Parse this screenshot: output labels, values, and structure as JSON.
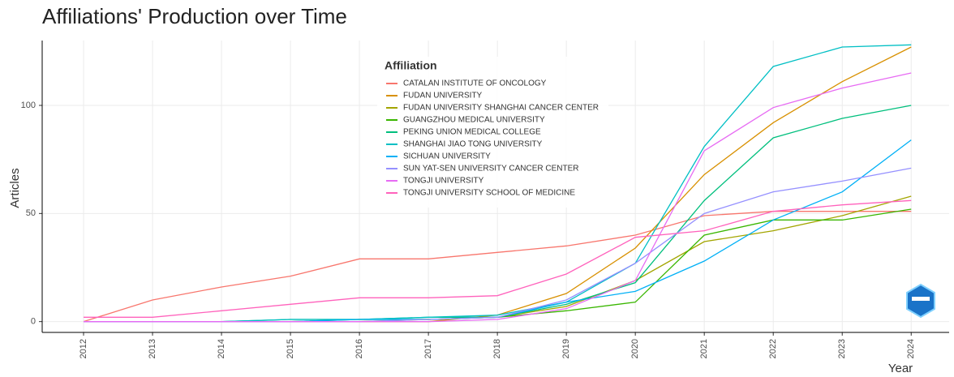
{
  "chart_data": {
    "type": "line",
    "title": "Affiliations' Production over Time",
    "x_label": "Year",
    "y_label": "Articles",
    "legend_title": "Affiliation",
    "x": [
      2012,
      2013,
      2014,
      2015,
      2016,
      2017,
      2018,
      2019,
      2020,
      2021,
      2022,
      2023,
      2024
    ],
    "xlim": [
      2011.4,
      2024.55
    ],
    "xticks": [
      2012,
      2013,
      2014,
      2015,
      2016,
      2017,
      2018,
      2019,
      2020,
      2021,
      2022,
      2023,
      2024
    ],
    "ylim": [
      -5,
      130
    ],
    "yticks": [
      0,
      50,
      100
    ],
    "grid": true,
    "series": [
      {
        "name": "CATALAN INSTITUTE OF ONCOLOGY",
        "color": "#F8766D",
        "values": [
          0,
          10,
          16,
          21,
          29,
          29,
          32,
          35,
          40,
          49,
          51,
          51,
          51
        ]
      },
      {
        "name": "FUDAN UNIVERSITY",
        "color": "#D89000",
        "values": [
          0,
          0,
          0,
          0,
          0,
          0,
          3,
          13,
          34,
          68,
          92,
          111,
          127
        ]
      },
      {
        "name": "FUDAN UNIVERSITY SHANGHAI CANCER CENTER",
        "color": "#A3A500",
        "values": [
          0,
          0,
          0,
          0,
          0,
          1,
          2,
          7,
          19,
          37,
          42,
          49,
          58
        ]
      },
      {
        "name": "GUANGZHOU MEDICAL UNIVERSITY",
        "color": "#39B600",
        "values": [
          0,
          0,
          0,
          0,
          1,
          1,
          2,
          5,
          9,
          40,
          47,
          47,
          52
        ]
      },
      {
        "name": "PEKING UNION MEDICAL COLLEGE",
        "color": "#00BF7D",
        "values": [
          0,
          0,
          0,
          1,
          1,
          2,
          2,
          8,
          18,
          56,
          85,
          94,
          100
        ]
      },
      {
        "name": "SHANGHAI JIAO TONG UNIVERSITY",
        "color": "#00BFC4",
        "values": [
          0,
          0,
          0,
          1,
          1,
          2,
          3,
          9,
          27,
          81,
          118,
          127,
          128
        ]
      },
      {
        "name": "SICHUAN UNIVERSITY",
        "color": "#00B0F6",
        "values": [
          0,
          0,
          0,
          0,
          1,
          1,
          2,
          9,
          14,
          28,
          47,
          60,
          84
        ]
      },
      {
        "name": "SUN YAT-SEN UNIVERSITY CANCER CENTER",
        "color": "#9590FF",
        "values": [
          0,
          0,
          0,
          0,
          0,
          1,
          2,
          10,
          27,
          50,
          60,
          65,
          71
        ]
      },
      {
        "name": "TONGJI UNIVERSITY",
        "color": "#E76BF3",
        "values": [
          0,
          0,
          0,
          0,
          0,
          0,
          1,
          6,
          19,
          79,
          99,
          108,
          115
        ]
      },
      {
        "name": "TONGJI UNIVERSITY SCHOOL OF MEDICINE",
        "color": "#FF62BC",
        "values": [
          2,
          2,
          5,
          8,
          11,
          11,
          12,
          22,
          39,
          42,
          51,
          54,
          56
        ]
      }
    ]
  }
}
